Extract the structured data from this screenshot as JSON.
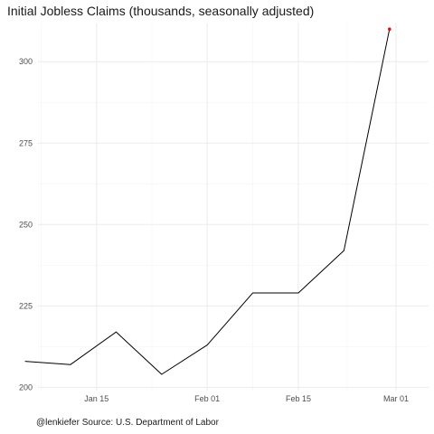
{
  "chart_data": {
    "type": "line",
    "title": "Initial Jobless Claims (thousands, seasonally adjusted)",
    "caption": "@lenkiefer Source: U.S. Department of Labor",
    "xlabel": "",
    "ylabel": "",
    "x_axis_type": "date",
    "xlim": [
      "2020-01-06",
      "2020-03-06"
    ],
    "ylim": [
      199,
      312
    ],
    "y_ticks": [
      200,
      225,
      250,
      275,
      300
    ],
    "x_ticks": [
      {
        "date": "2020-01-15",
        "label": "Jan 15"
      },
      {
        "date": "2020-02-01",
        "label": "Feb 01"
      },
      {
        "date": "2020-02-15",
        "label": "Feb 15"
      },
      {
        "date": "2020-03-01",
        "label": "Mar 01"
      }
    ],
    "grid": true,
    "series": [
      {
        "color": "#000000",
        "points": [
          {
            "x": "2020-01-04",
            "y": 208
          },
          {
            "x": "2020-01-11",
            "y": 207
          },
          {
            "x": "2020-01-18",
            "y": 217
          },
          {
            "x": "2020-01-25",
            "y": 204
          },
          {
            "x": "2020-02-01",
            "y": 213
          },
          {
            "x": "2020-02-08",
            "y": 229
          },
          {
            "x": "2020-02-15",
            "y": 229
          },
          {
            "x": "2020-02-22",
            "y": 242
          },
          {
            "x": "2020-02-29",
            "y": 310
          }
        ]
      }
    ],
    "highlight_point": {
      "x": "2020-02-29",
      "y": 310,
      "color": "#ff0000"
    }
  }
}
